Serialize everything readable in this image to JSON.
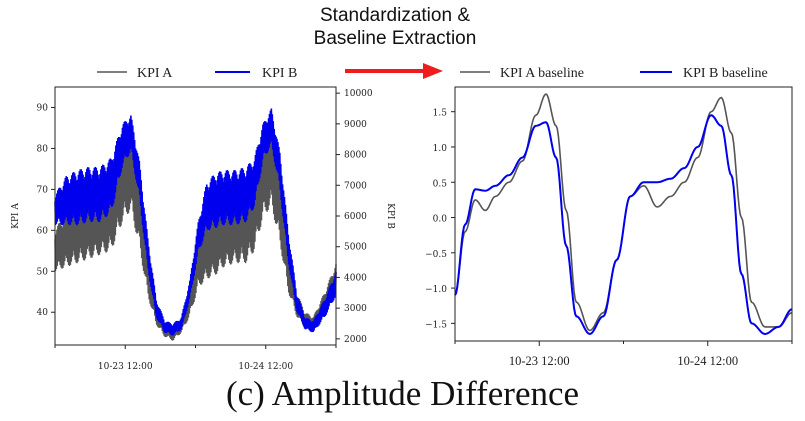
{
  "header": {
    "arrow_label_line1": "Standardization &",
    "arrow_label_line2": "Baseline Extraction",
    "arrow_color": "#ee1c1c"
  },
  "caption": "(c) Amplitude Difference",
  "chart_data": [
    {
      "type": "line",
      "title": "",
      "xlabel": "",
      "ylabel": "KPI A",
      "y2label": "KPI B",
      "x_ticks": [
        "10-23 12:00",
        "10-24 12:00"
      ],
      "ylim": [
        32,
        95
      ],
      "y2lim": [
        1800,
        10200
      ],
      "yticks": [
        40,
        50,
        60,
        70,
        80,
        90
      ],
      "y2ticks": [
        2000,
        3000,
        4000,
        5000,
        6000,
        7000,
        8000,
        9000,
        10000
      ],
      "legend": [
        "KPI A",
        "KPI B"
      ],
      "legend_placement": "top",
      "grid": false,
      "colors": {
        "kpi_a": "#555555",
        "kpi_b": "#0000ee"
      },
      "series": [
        {
          "name": "KPI A",
          "axis": "left",
          "x": [
            0.0,
            0.04,
            0.08,
            0.12,
            0.16,
            0.2,
            0.24,
            0.27,
            0.3,
            0.33,
            0.36,
            0.39,
            0.42,
            0.45,
            0.48,
            0.51,
            0.54,
            0.57,
            0.6,
            0.64,
            0.68,
            0.71,
            0.74,
            0.77,
            0.8,
            0.83,
            0.86,
            0.89,
            0.92,
            0.96,
            1.0
          ],
          "mean": [
            55,
            58,
            60,
            61,
            62,
            64,
            72,
            75,
            65,
            50,
            40,
            36,
            35,
            37,
            43,
            52,
            55,
            57,
            59,
            60,
            61,
            65,
            73,
            76,
            66,
            51,
            42,
            38,
            37,
            42,
            48
          ],
          "amp": [
            5,
            7,
            8,
            8,
            8,
            9,
            10,
            10,
            9,
            6,
            3,
            2,
            2,
            2,
            4,
            6,
            7,
            8,
            8,
            8,
            9,
            10,
            10,
            10,
            9,
            6,
            3,
            2,
            2,
            3,
            4
          ]
        },
        {
          "name": "KPI B",
          "axis": "right",
          "x": [
            0.0,
            0.04,
            0.08,
            0.12,
            0.16,
            0.2,
            0.24,
            0.27,
            0.3,
            0.33,
            0.36,
            0.39,
            0.42,
            0.45,
            0.48,
            0.51,
            0.54,
            0.57,
            0.6,
            0.64,
            0.68,
            0.71,
            0.74,
            0.77,
            0.8,
            0.83,
            0.86,
            0.89,
            0.92,
            0.96,
            1.0
          ],
          "mean": [
            6200,
            6500,
            6600,
            6700,
            6700,
            7000,
            8300,
            8700,
            7200,
            4800,
            3000,
            2400,
            2300,
            2500,
            3600,
            5300,
            6300,
            6500,
            6600,
            6600,
            6700,
            7100,
            8400,
            8900,
            7500,
            5000,
            3200,
            2500,
            2400,
            3000,
            3800
          ],
          "amp": [
            500,
            800,
            900,
            900,
            900,
            900,
            700,
            600,
            600,
            500,
            300,
            200,
            200,
            200,
            300,
            500,
            800,
            900,
            900,
            900,
            900,
            800,
            600,
            600,
            600,
            500,
            300,
            200,
            200,
            300,
            400
          ]
        }
      ]
    },
    {
      "type": "line",
      "title": "",
      "xlabel": "",
      "ylabel": "",
      "x_ticks": [
        "10-23 12:00",
        "10-24 12:00"
      ],
      "ylim": [
        -1.75,
        1.85
      ],
      "yticks": [
        -1.5,
        -1.0,
        -0.5,
        0.0,
        0.5,
        1.0,
        1.5
      ],
      "ytick_labels": [
        "−1.5",
        "−1.0",
        "−0.5",
        "0.0",
        "0.5",
        "1.0",
        "1.5"
      ],
      "legend": [
        "KPI A baseline",
        "KPI B baseline"
      ],
      "legend_placement": "top",
      "grid": false,
      "colors": {
        "kpi_a_baseline": "#555555",
        "kpi_b_baseline": "#0000ee"
      },
      "series": [
        {
          "name": "KPI A baseline",
          "x": [
            0.0,
            0.03,
            0.06,
            0.09,
            0.12,
            0.16,
            0.2,
            0.24,
            0.27,
            0.3,
            0.33,
            0.36,
            0.4,
            0.44,
            0.48,
            0.52,
            0.56,
            0.6,
            0.64,
            0.68,
            0.72,
            0.76,
            0.79,
            0.82,
            0.85,
            0.88,
            0.92,
            0.96,
            1.0
          ],
          "y": [
            -1.1,
            -0.2,
            0.25,
            0.1,
            0.3,
            0.5,
            0.8,
            1.45,
            1.75,
            1.3,
            0.1,
            -1.2,
            -1.6,
            -1.35,
            -0.6,
            0.3,
            0.45,
            0.15,
            0.3,
            0.5,
            0.85,
            1.5,
            1.7,
            1.2,
            0.0,
            -1.2,
            -1.55,
            -1.55,
            -1.35
          ]
        },
        {
          "name": "KPI B baseline",
          "x": [
            0.0,
            0.03,
            0.06,
            0.09,
            0.12,
            0.16,
            0.2,
            0.24,
            0.27,
            0.3,
            0.33,
            0.36,
            0.4,
            0.44,
            0.48,
            0.52,
            0.56,
            0.6,
            0.64,
            0.68,
            0.72,
            0.76,
            0.79,
            0.82,
            0.85,
            0.88,
            0.92,
            0.96,
            1.0
          ],
          "y": [
            -1.1,
            -0.1,
            0.4,
            0.38,
            0.45,
            0.6,
            0.85,
            1.3,
            1.35,
            0.85,
            -0.4,
            -1.4,
            -1.65,
            -1.4,
            -0.6,
            0.3,
            0.5,
            0.5,
            0.55,
            0.7,
            1.0,
            1.45,
            1.3,
            0.6,
            -0.8,
            -1.5,
            -1.65,
            -1.55,
            -1.3
          ]
        }
      ]
    }
  ]
}
